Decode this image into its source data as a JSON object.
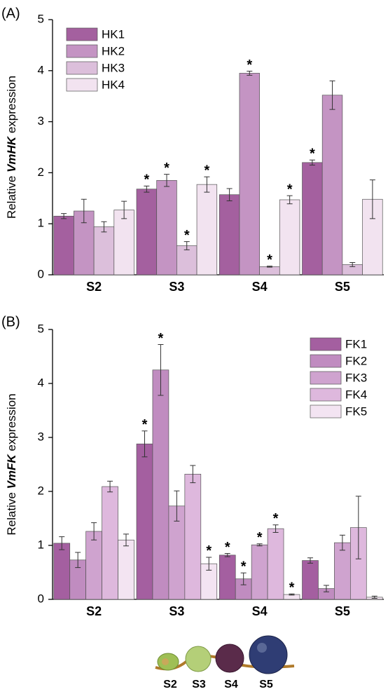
{
  "chart_data": [
    {
      "type": "bar",
      "panel_label": "(A)",
      "ylabel_parts": [
        "Relative ",
        "VmHK",
        " expression"
      ],
      "categories": [
        "S2",
        "S3",
        "S4",
        "S5"
      ],
      "ylim": [
        0,
        5
      ],
      "yticks": [
        0,
        1,
        2,
        3,
        4,
        5
      ],
      "legend": "upper left",
      "significance_marker": "*",
      "series": [
        {
          "name": "HK1",
          "color": "#a4609f",
          "values": [
            1.15,
            1.68,
            1.57,
            2.2
          ],
          "errors": [
            0.05,
            0.06,
            0.12,
            0.05
          ],
          "significant": [
            false,
            true,
            false,
            true
          ]
        },
        {
          "name": "HK2",
          "color": "#c494c3",
          "values": [
            1.25,
            1.85,
            3.95,
            3.52
          ],
          "errors": [
            0.23,
            0.12,
            0.04,
            0.28
          ],
          "significant": [
            false,
            true,
            true,
            false
          ]
        },
        {
          "name": "HK3",
          "color": "#dcbfdb",
          "values": [
            0.94,
            0.57,
            0.16,
            0.2
          ],
          "errors": [
            0.1,
            0.08,
            0.01,
            0.04
          ],
          "significant": [
            false,
            true,
            true,
            false
          ]
        },
        {
          "name": "HK4",
          "color": "#f2e3f0",
          "values": [
            1.27,
            1.77,
            1.47,
            1.48
          ],
          "errors": [
            0.17,
            0.15,
            0.08,
            0.38
          ],
          "significant": [
            false,
            true,
            true,
            false
          ]
        }
      ]
    },
    {
      "type": "bar",
      "panel_label": "(B)",
      "ylabel_parts": [
        "Relative ",
        "VmFK",
        " expression"
      ],
      "categories": [
        "S2",
        "S3",
        "S4",
        "S5"
      ],
      "ylim": [
        0,
        5
      ],
      "yticks": [
        0,
        1,
        2,
        3,
        4,
        5
      ],
      "legend": "upper right",
      "significance_marker": "*",
      "series": [
        {
          "name": "FK1",
          "color": "#a45fa0",
          "values": [
            1.04,
            2.88,
            0.82,
            0.72
          ],
          "errors": [
            0.12,
            0.24,
            0.03,
            0.05
          ],
          "significant": [
            false,
            true,
            true,
            false
          ]
        },
        {
          "name": "FK2",
          "color": "#c08cc0",
          "values": [
            0.73,
            4.25,
            0.38,
            0.2
          ],
          "errors": [
            0.14,
            0.47,
            0.11,
            0.06
          ],
          "significant": [
            false,
            true,
            true,
            false
          ]
        },
        {
          "name": "FK3",
          "color": "#cfa3cf",
          "values": [
            1.26,
            1.73,
            1.01,
            1.05
          ],
          "errors": [
            0.16,
            0.28,
            0.02,
            0.14
          ],
          "significant": [
            false,
            false,
            true,
            false
          ]
        },
        {
          "name": "FK4",
          "color": "#deb8dd",
          "values": [
            2.09,
            2.32,
            1.31,
            1.33
          ],
          "errors": [
            0.1,
            0.16,
            0.07,
            0.58
          ],
          "significant": [
            false,
            false,
            true,
            false
          ]
        },
        {
          "name": "FK5",
          "color": "#f3e4f2",
          "values": [
            1.1,
            0.66,
            0.09,
            0.04
          ],
          "errors": [
            0.11,
            0.12,
            0.01,
            0.02
          ],
          "significant": [
            false,
            true,
            true,
            false
          ]
        }
      ]
    }
  ],
  "fruit_stages": [
    "S2",
    "S3",
    "S4",
    "S5"
  ]
}
